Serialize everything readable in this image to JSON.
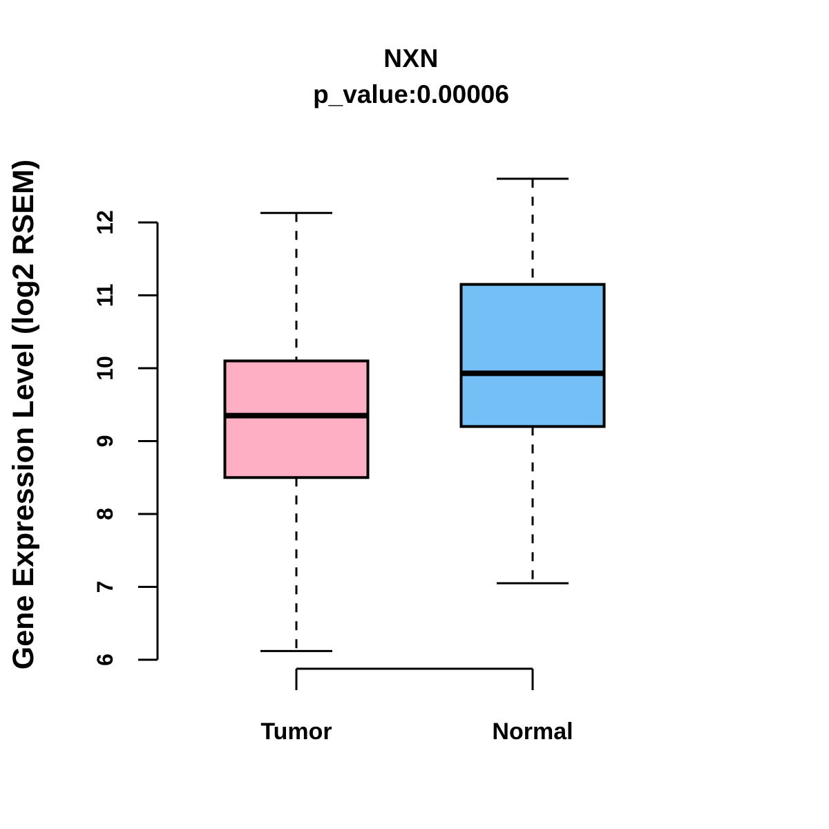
{
  "chart_data": {
    "type": "boxplot",
    "title": "NXN",
    "subtitle": "p_value:0.00006",
    "ylabel": "Gene Expression Level (log2 RSEM)",
    "categories": [
      "Tumor",
      "Normal"
    ],
    "yticks": [
      6,
      7,
      8,
      9,
      10,
      11,
      12
    ],
    "ylim": [
      5.8,
      12.9
    ],
    "grid": false,
    "legend": "none",
    "series": [
      {
        "name": "Tumor",
        "color": "#FFAFC4",
        "whisker_low": 6.12,
        "q1": 8.5,
        "median": 9.35,
        "q3": 10.1,
        "whisker_high": 12.13
      },
      {
        "name": "Normal",
        "color": "#75BFF7",
        "whisker_low": 7.05,
        "q1": 9.2,
        "median": 9.93,
        "q3": 11.15,
        "whisker_high": 12.6
      }
    ],
    "colors": {
      "box_border": "#000000",
      "median_line": "#000000",
      "whisker": "#000000",
      "axis": "#000000",
      "text": "#000000",
      "background": "#FFFFFF"
    }
  }
}
